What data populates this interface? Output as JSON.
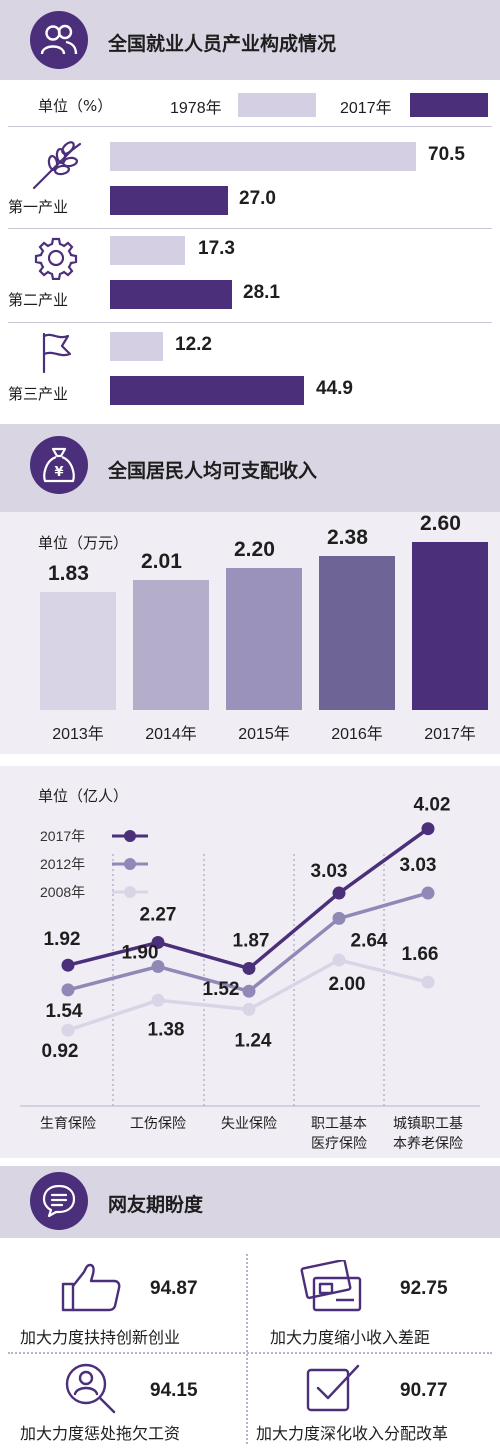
{
  "section1": {
    "title": "全国就业人员产业构成情况",
    "unit": "单位（%）",
    "legend_1978": "1978年",
    "legend_2017": "2017年",
    "colors": {
      "y1978": "#d4cfe3",
      "y2017": "#4b2f7a"
    },
    "industries": [
      {
        "label": "第一产业",
        "icon": "wheat-icon",
        "v1978": "70.5",
        "v2017": "27.0"
      },
      {
        "label": "第二产业",
        "icon": "gear-icon",
        "v1978": "17.3",
        "v2017": "28.1"
      },
      {
        "label": "第三产业",
        "icon": "flag-icon",
        "v1978": "12.2",
        "v2017": "44.9"
      }
    ]
  },
  "section2": {
    "title": "全国居民人均可支配收入",
    "icon": "money-bag-icon",
    "unit": "单位（万元）"
  },
  "section3": {
    "unit": "单位（亿人）",
    "legend": [
      "2017年",
      "2012年",
      "2008年"
    ],
    "categories": [
      "生育保险",
      "工伤保险",
      "失业保险",
      "职工基本\n医疗保险",
      "城镇职工基\n本养老保险"
    ],
    "category_lines": [
      [
        "生育保险"
      ],
      [
        "工伤保险"
      ],
      [
        "失业保险"
      ],
      [
        "职工基本",
        "医疗保险"
      ],
      [
        "城镇职工基",
        "本养老保险"
      ]
    ]
  },
  "section4": {
    "title": "网友期盼度",
    "icon": "chat-icon",
    "items": [
      {
        "label": "加大力度扶持创新创业",
        "value": "94.87",
        "icon": "thumbs-up-icon"
      },
      {
        "label": "加大力度缩小收入差距",
        "value": "92.75",
        "icon": "card-icon"
      },
      {
        "label": "加大力度惩处拖欠工资",
        "value": "94.15",
        "icon": "magnifier-person-icon"
      },
      {
        "label": "加大力度深化收入分配改革",
        "value": "90.77",
        "icon": "checkbox-icon"
      }
    ]
  },
  "chart_data": [
    {
      "type": "bar",
      "title": "全国就业人员产业构成情况",
      "unit": "单位（%）",
      "categories": [
        "第一产业",
        "第二产业",
        "第三产业"
      ],
      "series": [
        {
          "name": "1978年",
          "values": [
            70.5,
            17.3,
            12.2
          ],
          "color": "#d4cfe3"
        },
        {
          "name": "2017年",
          "values": [
            27.0,
            28.1,
            44.9
          ],
          "color": "#4b2f7a"
        }
      ]
    },
    {
      "type": "bar",
      "title": "全国居民人均可支配收入",
      "unit": "单位（万元）",
      "categories": [
        "2013年",
        "2014年",
        "2015年",
        "2016年",
        "2017年"
      ],
      "values": [
        1.83,
        2.01,
        2.2,
        2.38,
        2.6
      ],
      "colors": [
        "#d8d4e6",
        "#b4aecb",
        "#9a92bb",
        "#6f6496",
        "#4b2f7a"
      ]
    },
    {
      "type": "line",
      "unit": "单位（亿人）",
      "categories": [
        "生育保险",
        "工伤保险",
        "失业保险",
        "职工基本医疗保险",
        "城镇职工基本养老保险"
      ],
      "series": [
        {
          "name": "2017年",
          "values": [
            1.92,
            2.27,
            1.87,
            3.03,
            4.02
          ],
          "color": "#4b2f7a"
        },
        {
          "name": "2012年",
          "values": [
            1.54,
            1.9,
            1.52,
            2.64,
            3.03
          ],
          "color": "#9088b6"
        },
        {
          "name": "2008年",
          "values": [
            0.92,
            1.38,
            1.24,
            2.0,
            1.66
          ],
          "color": "#d9d5e6"
        }
      ]
    }
  ]
}
